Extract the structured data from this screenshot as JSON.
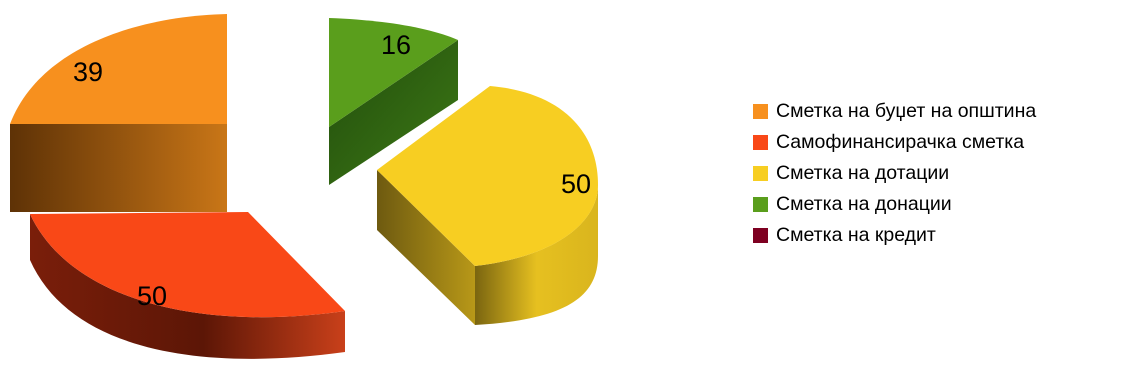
{
  "chart_data": {
    "type": "pie",
    "title": "",
    "categories": [
      "Сметка на буџет на општина",
      "Самофинансирачка сметка",
      "Сметка на дотации",
      "Сметка на донации",
      "Сметка на кредит"
    ],
    "values": [
      39,
      50,
      50,
      16,
      0
    ],
    "colors": [
      "#F7901E",
      "#F94817",
      "#F7CE22",
      "#5A9E1C",
      "#7E0021"
    ],
    "data_labels": [
      "39",
      "50",
      "50",
      "16",
      ""
    ],
    "style": "3d-exploded",
    "legend_position": "right"
  }
}
